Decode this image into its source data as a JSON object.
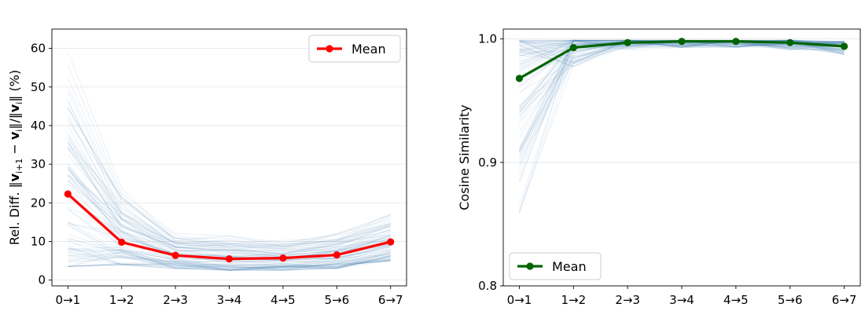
{
  "chart_data": [
    {
      "type": "line",
      "title": "",
      "xlabel": "",
      "ylabel": "Rel. Diff. ‖v_{i+1} − v_i‖/‖v_i‖ (%)",
      "ylabel_parts": [
        "Rel. Diff. ‖",
        "v",
        "i+1",
        " − ",
        "v",
        "i",
        "‖/‖",
        "v",
        "i",
        "‖ (%)"
      ],
      "categories": [
        "0→1",
        "1→2",
        "2→3",
        "3→4",
        "4→5",
        "5→6",
        "6→7"
      ],
      "ylim": [
        -1.5,
        65
      ],
      "yticks": [
        0,
        10,
        20,
        30,
        40,
        50,
        60
      ],
      "grid": "horizontal",
      "legend_position": "top-right",
      "series": [
        {
          "name": "Mean",
          "values": [
            22.3,
            9.8,
            6.4,
            5.5,
            5.7,
            6.5,
            9.9
          ],
          "color": "#ff0000"
        }
      ],
      "background_band": {
        "color": "#4682b4",
        "count": 90,
        "description_values": {
          "min": [
            3.5,
            4.0,
            3.0,
            2.5,
            2.5,
            3.0,
            5.0
          ],
          "max": [
            62.0,
            25.0,
            13.0,
            12.0,
            11.0,
            13.0,
            18.0
          ]
        }
      }
    },
    {
      "type": "line",
      "title": "",
      "xlabel": "",
      "ylabel": "Cosine Similarity",
      "categories": [
        "0→1",
        "1→2",
        "2→3",
        "3→4",
        "4→5",
        "5→6",
        "6→7"
      ],
      "ylim": [
        0.8,
        1.008
      ],
      "yticks": [
        0.8,
        0.9,
        1.0
      ],
      "ytick_labels": [
        "0.8",
        "0.9",
        "1.0"
      ],
      "grid": "horizontal",
      "legend_position": "bottom-left",
      "series": [
        {
          "name": "Mean",
          "values": [
            0.968,
            0.993,
            0.997,
            0.998,
            0.998,
            0.997,
            0.994
          ],
          "color": "#006400"
        }
      ],
      "background_band": {
        "color": "#4682b4",
        "count": 90,
        "description_values": {
          "min": [
            0.83,
            0.975,
            0.99,
            0.992,
            0.992,
            0.99,
            0.985
          ],
          "max": [
            0.999,
            0.999,
            0.999,
            0.999,
            0.999,
            0.999,
            0.998
          ]
        }
      }
    }
  ]
}
